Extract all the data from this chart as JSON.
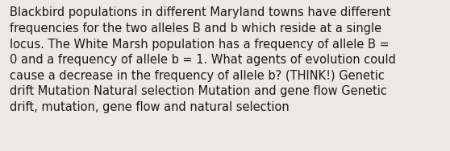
{
  "lines": [
    "Blackbird populations in different Maryland towns have different",
    "frequencies for the two alleles B and b which reside at a single",
    "locus. The White Marsh population has a frequency of allele B =",
    "0 and a frequency of allele b = 1. What agents of evolution could",
    "cause a decrease in the frequency of allele b? (THINK!) Genetic",
    "drift Mutation Natural selection Mutation and gene flow Genetic",
    "drift, mutation, gene flow and natural selection"
  ],
  "background_color": "#ece9e3",
  "text_color": "#1a1a1a",
  "font_size": 10.5,
  "fig_width": 5.58,
  "fig_height": 1.88,
  "dpi": 100
}
